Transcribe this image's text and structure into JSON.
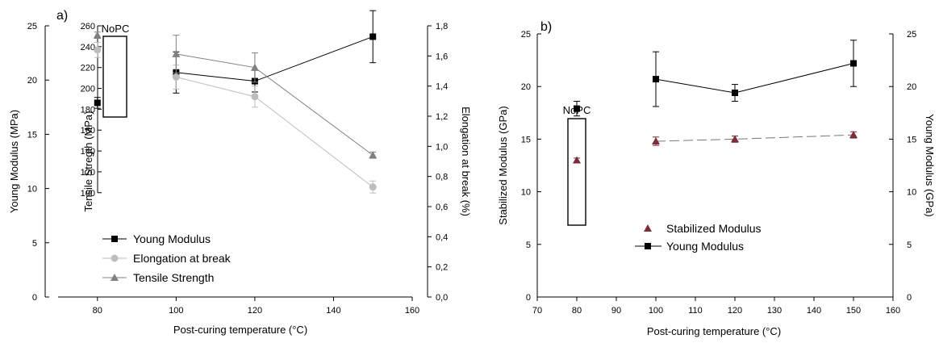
{
  "chart_data": [
    {
      "type": "line",
      "panel_label": "a)",
      "nopc_label": "NoPC",
      "xlabel": "Post-curing temperature (°C)",
      "ylabel_left": "Young Modulus (MPa)",
      "ylabel_inner": "Tensile Stregth (MPa)",
      "ylabel_right": "Elongation at break (%)",
      "xlim": [
        70,
        160
      ],
      "x_ticks": [
        "80",
        "100",
        "120",
        "140",
        "160"
      ],
      "y_left_lim": [
        0,
        25
      ],
      "y_left_ticks": [
        "0",
        "5",
        "10",
        "15",
        "20",
        "25"
      ],
      "y_inner_lim": [
        0,
        260
      ],
      "y_inner_ticks": [
        "100",
        "120",
        "140",
        "160",
        "180",
        "200",
        "220",
        "240",
        "260"
      ],
      "y_right_lim": [
        0.0,
        1.8
      ],
      "y_right_ticks": [
        "0,0",
        "0,2",
        "0,4",
        "0,6",
        "0,8",
        "1,0",
        "1,2",
        "1,4",
        "1,6",
        "1,8"
      ],
      "series": [
        {
          "name": "Young Modulus",
          "axis": "left",
          "marker": "square",
          "color": "#000000",
          "x": [
            80,
            100,
            120,
            150
          ],
          "y": [
            17.9,
            20.7,
            19.9,
            24.0
          ],
          "err": [
            0.5,
            1.9,
            1.0,
            2.4
          ],
          "connect_from_index": 1
        },
        {
          "name": "Elongation at break",
          "axis": "right",
          "marker": "circle",
          "color": "#bdbdbd",
          "x": [
            80,
            100,
            120,
            150
          ],
          "y": [
            1.64,
            1.46,
            1.33,
            0.73
          ],
          "err": [
            0.05,
            0.08,
            0.07,
            0.04
          ],
          "connect_from_index": 1
        },
        {
          "name": "Tensile Strength",
          "axis": "inner",
          "marker": "triangle",
          "color": "#808080",
          "x": [
            80,
            100,
            120,
            150
          ],
          "y": [
            251,
            233,
            220,
            136
          ],
          "err": [
            3,
            18,
            14,
            3
          ],
          "connect_from_index": 1
        }
      ],
      "legend_position": "bottom-left"
    },
    {
      "type": "line",
      "panel_label": "b)",
      "nopc_label": "NoPC",
      "xlabel": "Post-curing temperature (°C)",
      "ylabel_left": "Stabilized Modulus (GPa)",
      "ylabel_right": "Young Modulus (GPa)",
      "xlim": [
        70,
        160
      ],
      "x_ticks": [
        "70",
        "80",
        "90",
        "100",
        "110",
        "120",
        "130",
        "140",
        "150",
        "160"
      ],
      "y_left_lim": [
        0,
        25
      ],
      "y_left_ticks": [
        "0",
        "5",
        "10",
        "15",
        "20",
        "25"
      ],
      "y_right_lim": [
        0,
        25
      ],
      "y_right_ticks": [
        "0",
        "5",
        "10",
        "15",
        "20",
        "25"
      ],
      "series": [
        {
          "name": "Stabilized Modulus",
          "axis": "left",
          "marker": "triangle",
          "color": "#7b2d3c",
          "x": [
            80,
            100,
            120,
            150
          ],
          "y": [
            13.0,
            14.8,
            15.0,
            15.4
          ],
          "err": [
            0.2,
            0.4,
            0.3,
            0.3
          ],
          "connect_from_index": 1,
          "dashed": true
        },
        {
          "name": "Young Modulus",
          "axis": "right",
          "marker": "square",
          "color": "#000000",
          "x": [
            80,
            100,
            120,
            150
          ],
          "y": [
            17.9,
            20.7,
            19.4,
            22.2
          ],
          "err": [
            0.7,
            2.6,
            0.8,
            2.2
          ],
          "connect_from_index": 1
        }
      ],
      "legend_position": "bottom-center"
    }
  ]
}
